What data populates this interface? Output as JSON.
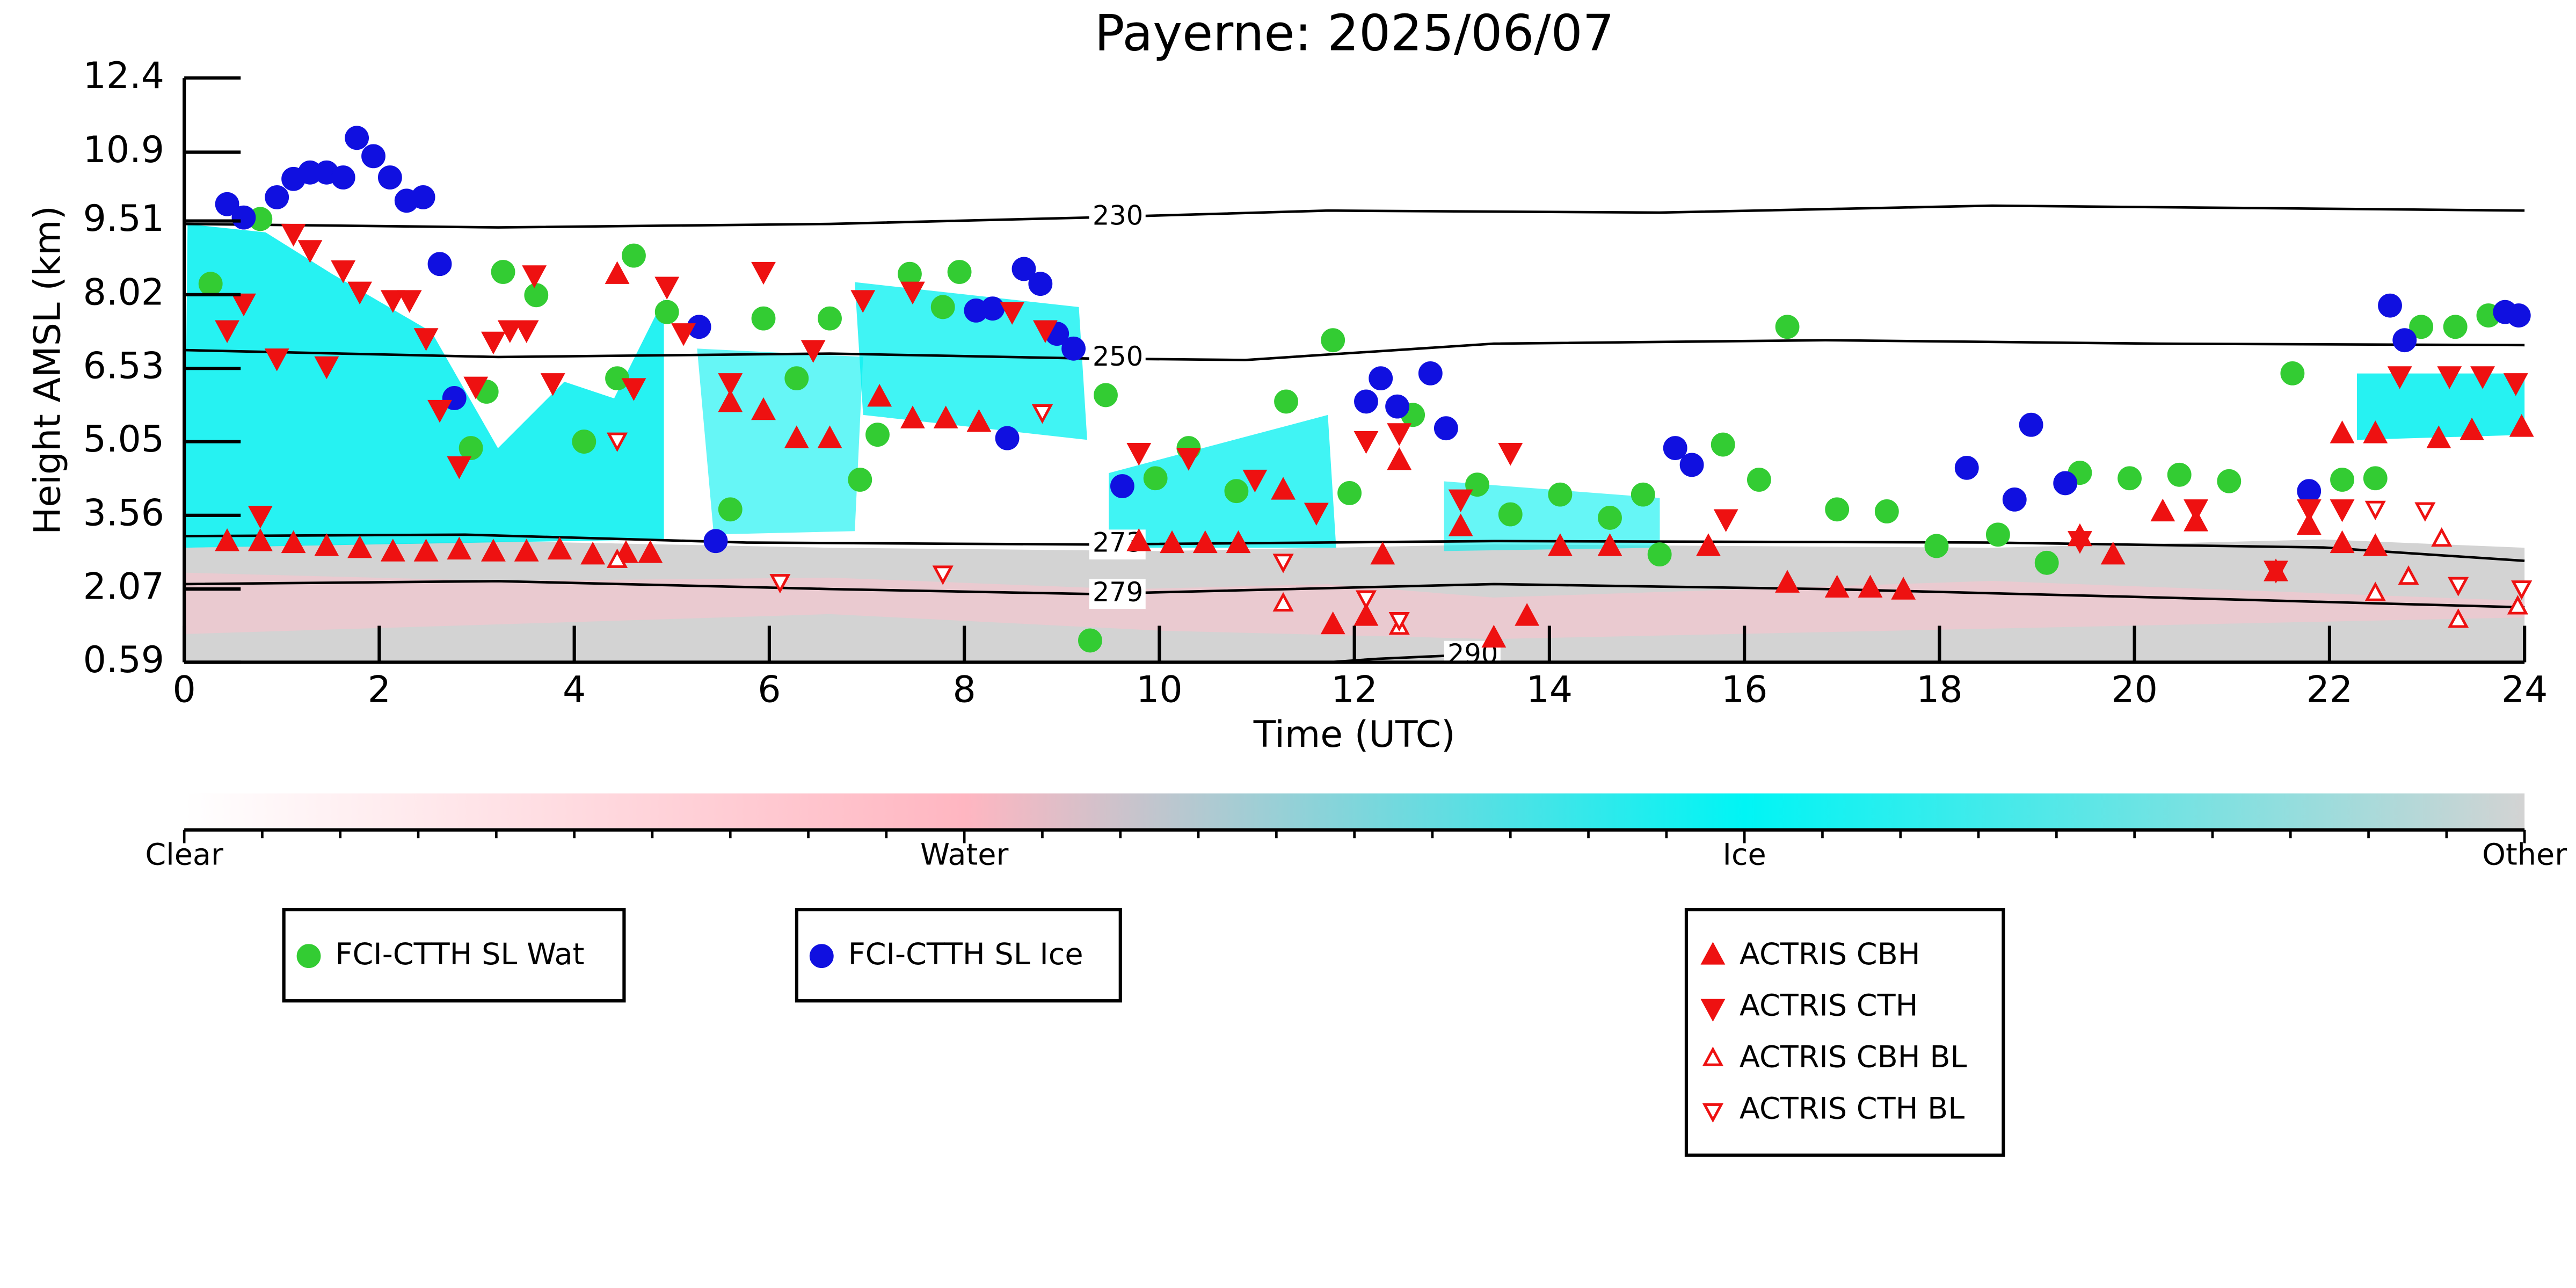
{
  "chart_data": {
    "type": "scatter",
    "title": "Payerne: 2025/06/07",
    "x_label": "Time (UTC)",
    "y_label": "Height AMSL (km)",
    "xlim": [
      0,
      24
    ],
    "xticks": [
      0,
      2,
      4,
      6,
      8,
      10,
      12,
      14,
      16,
      18,
      20,
      22,
      24
    ],
    "ylim": [
      0.59,
      12.4
    ],
    "yticks": [
      0.59,
      2.07,
      3.56,
      5.05,
      6.53,
      8.02,
      9.51,
      10.9,
      12.4
    ],
    "series": [
      {
        "name": "FCI-CTTH SL Wat",
        "color": "#33cc33",
        "marker": "circle",
        "filled": true,
        "x": [
          0.27,
          0.78,
          3.27,
          3.61,
          2.94,
          3.1,
          4.1,
          4.44,
          4.61,
          4.95,
          5.6,
          5.94,
          6.28,
          6.62,
          6.93,
          7.11,
          7.44,
          7.78,
          7.95,
          9.29,
          9.45,
          9.96,
          10.3,
          10.79,
          11.3,
          11.78,
          11.95,
          12.6,
          13.26,
          13.6,
          14.11,
          14.62,
          14.96,
          15.13,
          15.78,
          16.15,
          16.44,
          16.95,
          17.46,
          17.97,
          18.6,
          19.1,
          19.44,
          19.95,
          20.46,
          20.97,
          21.62,
          22.13,
          22.47,
          22.94,
          23.29,
          23.63
        ],
        "y": [
          8.24,
          9.55,
          8.48,
          8.01,
          4.92,
          6.06,
          5.05,
          6.33,
          8.81,
          7.67,
          3.68,
          7.54,
          6.33,
          7.54,
          4.28,
          5.19,
          8.44,
          7.77,
          8.48,
          1.03,
          5.99,
          4.31,
          4.92,
          4.05,
          5.86,
          7.1,
          4.01,
          5.59,
          4.18,
          3.58,
          3.98,
          3.51,
          3.98,
          2.77,
          4.99,
          4.28,
          7.37,
          3.68,
          3.64,
          2.94,
          3.17,
          2.6,
          4.42,
          4.31,
          4.38,
          4.25,
          6.43,
          4.28,
          4.31,
          7.37,
          7.37,
          7.6
        ]
      },
      {
        "name": "FCI-CTTH SL Ice",
        "color": "#1010e0",
        "marker": "circle",
        "filled": true,
        "x": [
          0.44,
          0.61,
          0.95,
          1.12,
          1.29,
          1.46,
          1.63,
          1.77,
          1.94,
          2.11,
          2.28,
          2.45,
          2.62,
          2.77,
          5.28,
          5.45,
          8.12,
          8.29,
          8.44,
          8.61,
          8.78,
          8.95,
          9.12,
          9.62,
          12.12,
          12.27,
          12.44,
          12.78,
          12.94,
          15.29,
          15.46,
          18.28,
          18.77,
          18.94,
          19.29,
          21.79,
          22.62,
          22.77,
          23.8,
          23.94
        ],
        "y": [
          9.85,
          9.58,
          9.99,
          10.36,
          10.49,
          10.49,
          10.39,
          11.19,
          10.82,
          10.39,
          9.92,
          9.99,
          8.64,
          5.93,
          7.37,
          3.04,
          7.7,
          7.74,
          5.12,
          8.54,
          8.24,
          7.23,
          6.93,
          4.15,
          5.86,
          6.33,
          5.76,
          6.43,
          5.32,
          4.92,
          4.58,
          4.52,
          3.88,
          5.39,
          4.21,
          4.05,
          7.8,
          7.1,
          7.67,
          7.6
        ]
      },
      {
        "name": "ACTRIS CBH",
        "color": "#ee1111",
        "marker": "triangle-up",
        "filled": true,
        "x": [
          0.44,
          0.78,
          1.12,
          1.46,
          1.8,
          2.14,
          2.48,
          2.82,
          3.17,
          3.51,
          3.85,
          4.19,
          4.53,
          4.78,
          4.44,
          5.6,
          5.94,
          6.28,
          6.62,
          7.13,
          7.47,
          7.81,
          8.15,
          9.79,
          10.13,
          10.47,
          10.81,
          11.27,
          11.78,
          12.12,
          12.29,
          12.46,
          13.09,
          13.43,
          13.77,
          14.11,
          14.62,
          15.63,
          16.44,
          16.95,
          17.29,
          17.63,
          19.44,
          19.78,
          20.29,
          20.63,
          21.45,
          21.79,
          22.13,
          22.47,
          22.13,
          22.47,
          23.12,
          23.46,
          23.97
        ],
        "y": [
          3.01,
          3.01,
          2.97,
          2.91,
          2.87,
          2.8,
          2.8,
          2.84,
          2.8,
          2.8,
          2.84,
          2.74,
          2.77,
          2.77,
          8.41,
          5.82,
          5.66,
          5.09,
          5.09,
          5.93,
          5.49,
          5.49,
          5.42,
          3.01,
          2.97,
          2.97,
          2.97,
          4.05,
          1.33,
          1.5,
          2.74,
          4.65,
          3.31,
          1.06,
          1.5,
          2.91,
          2.91,
          2.91,
          2.17,
          2.07,
          2.07,
          2.03,
          3.11,
          2.74,
          3.61,
          3.41,
          2.4,
          3.34,
          2.97,
          2.91,
          5.19,
          5.19,
          5.09,
          5.25,
          5.32
        ]
      },
      {
        "name": "ACTRIS CTH",
        "color": "#ee1111",
        "marker": "triangle-down",
        "filled": true,
        "x": [
          0.44,
          0.61,
          0.78,
          0.95,
          1.12,
          1.29,
          1.46,
          1.63,
          1.8,
          2.14,
          2.31,
          2.48,
          2.62,
          2.82,
          2.99,
          3.17,
          3.34,
          3.51,
          3.59,
          3.78,
          4.61,
          4.95,
          5.12,
          5.6,
          5.94,
          6.45,
          6.96,
          7.47,
          8.49,
          8.83,
          9.79,
          10.3,
          10.98,
          11.61,
          12.12,
          12.46,
          13.09,
          13.6,
          15.81,
          19.44,
          20.63,
          21.45,
          21.79,
          22.13,
          22.72,
          23.23,
          23.57,
          23.91
        ],
        "y": [
          7.33,
          7.87,
          3.58,
          6.76,
          9.28,
          8.95,
          6.6,
          8.54,
          8.11,
          7.94,
          7.94,
          7.17,
          5.72,
          4.58,
          6.19,
          7.1,
          7.33,
          7.33,
          8.44,
          6.26,
          6.16,
          8.21,
          7.27,
          6.26,
          8.51,
          6.93,
          7.94,
          8.11,
          7.7,
          7.33,
          4.85,
          4.75,
          4.31,
          3.64,
          5.09,
          5.25,
          3.91,
          4.85,
          3.51,
          3.07,
          3.71,
          2.47,
          3.71,
          3.71,
          6.4,
          6.4,
          6.4,
          6.26
        ]
      },
      {
        "name": "ACTRIS CBH BL",
        "color": "#ee1111",
        "marker": "triangle-up",
        "filled": false,
        "x": [
          4.44,
          11.27,
          12.46,
          22.47,
          22.81,
          23.15,
          23.32,
          23.93
        ],
        "y": [
          2.64,
          1.76,
          1.29,
          1.97,
          2.3,
          3.07,
          1.43,
          1.7
        ]
      },
      {
        "name": "ACTRIS CTH BL",
        "color": "#ee1111",
        "marker": "triangle-down",
        "filled": false,
        "x": [
          4.44,
          6.11,
          7.78,
          8.8,
          11.27,
          12.12,
          12.46,
          22.47,
          22.98,
          23.32,
          23.97
        ],
        "y": [
          5.09,
          2.23,
          2.4,
          5.66,
          2.64,
          1.9,
          1.46,
          3.71,
          3.68,
          2.17,
          2.1
        ]
      }
    ],
    "contours": [
      {
        "label": 230,
        "x": [
          0,
          3.22,
          6.62,
          9.28,
          11.73,
          15.13,
          18.54,
          24
        ],
        "y": [
          9.45,
          9.38,
          9.45,
          9.58,
          9.72,
          9.68,
          9.82,
          9.72
        ]
      },
      {
        "label": 250,
        "x": [
          0,
          3.22,
          6.62,
          9.28,
          10.88,
          13.43,
          16.83,
          20.24,
          24
        ],
        "y": [
          6.9,
          6.76,
          6.83,
          6.73,
          6.7,
          7.03,
          7.1,
          7.03,
          7.0
        ]
      },
      {
        "label": 273,
        "x": [
          0,
          2.88,
          5.77,
          9.28,
          13.43,
          18.54,
          21.94,
          24
        ],
        "y": [
          3.14,
          3.17,
          3.01,
          2.97,
          3.04,
          3.01,
          2.91,
          2.64
        ]
      },
      {
        "label": 279,
        "x": [
          0,
          3.22,
          6.62,
          9.28,
          13.43,
          16.83,
          20.24,
          24
        ],
        "y": [
          2.17,
          2.23,
          2.07,
          1.97,
          2.17,
          2.07,
          1.9,
          1.7
        ]
      },
      {
        "label": 290,
        "x": [
          11.73,
          12.24,
          12.92,
          13.43
        ],
        "y": [
          0.59,
          0.66,
          0.72,
          0.59
        ]
      }
    ],
    "contour_color": "#000000",
    "colorbar": {
      "labels": [
        "Clear",
        "Water",
        "Ice",
        "Other"
      ],
      "colors": [
        "#ffffff",
        "#ffb6c1",
        "#00f5f5",
        "#d3d3d3"
      ]
    }
  }
}
